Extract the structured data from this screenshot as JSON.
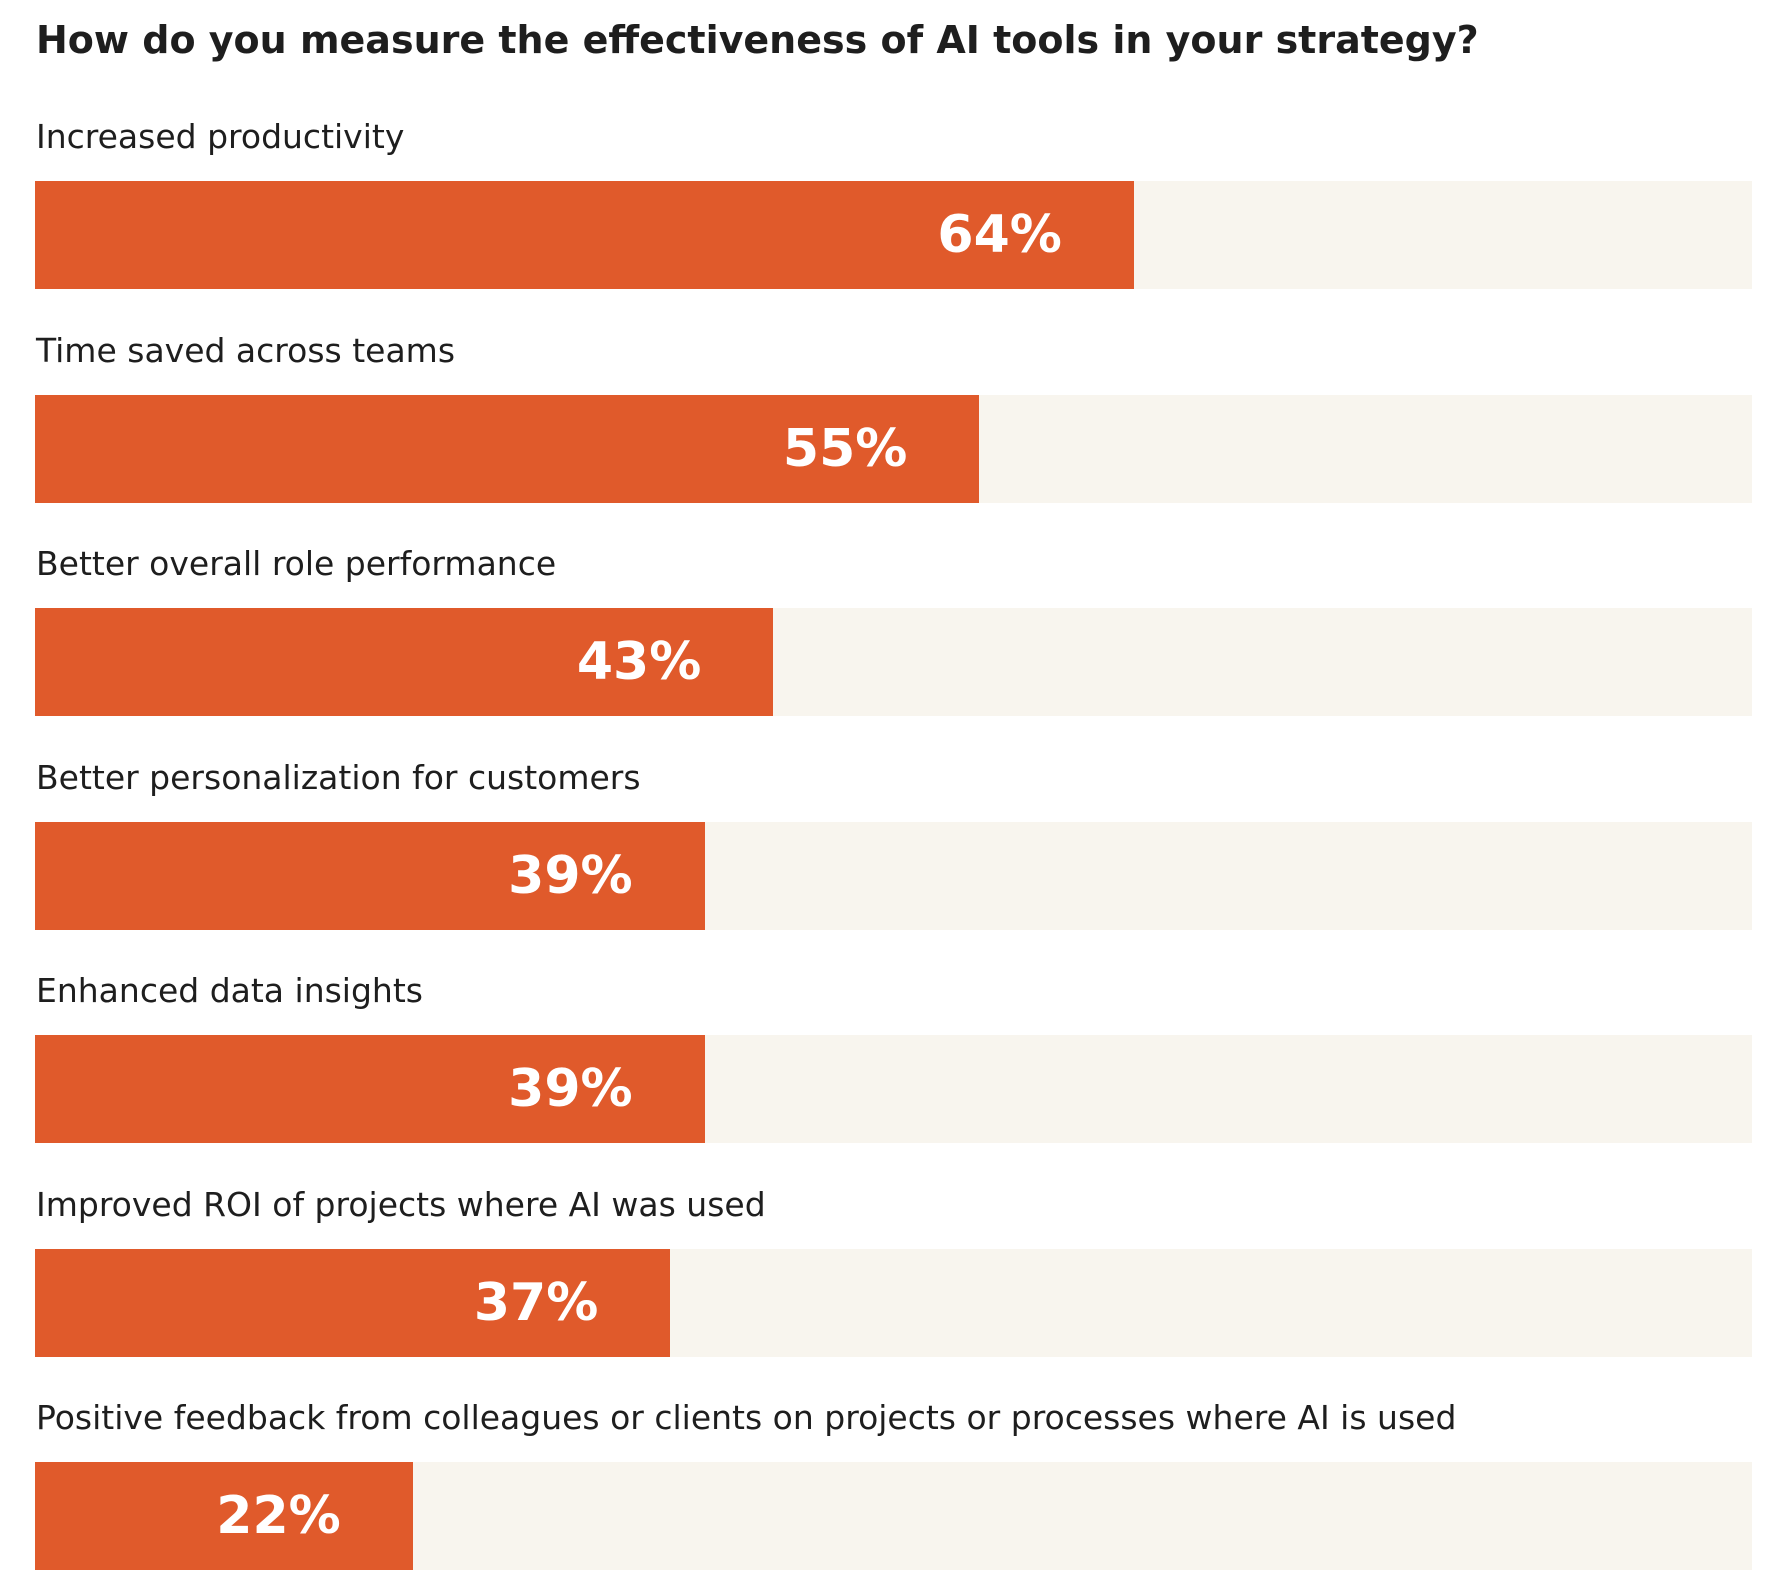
{
  "chart_data": {
    "type": "bar",
    "orientation": "horizontal",
    "title": "How do you measure the effectiveness of AI tools in your strategy?",
    "categories": [
      "Increased productivity",
      "Time saved across teams",
      "Better overall role performance",
      "Better personalization for customers",
      "Enhanced data insights",
      "Improved ROI of projects where AI was used",
      "Positive feedback from colleagues or clients on projects or processes where AI is used"
    ],
    "values": [
      64,
      55,
      43,
      39,
      39,
      37,
      22
    ],
    "value_labels": [
      "64%",
      "55%",
      "43%",
      "39%",
      "39%",
      "37%",
      "22%"
    ],
    "xlim": [
      0,
      100
    ],
    "grid": false,
    "colors": {
      "bar": "#E05A2B",
      "track": "#F8F5EE",
      "value_text": "#FFFFFF",
      "label_text": "#1E1E1E"
    }
  }
}
